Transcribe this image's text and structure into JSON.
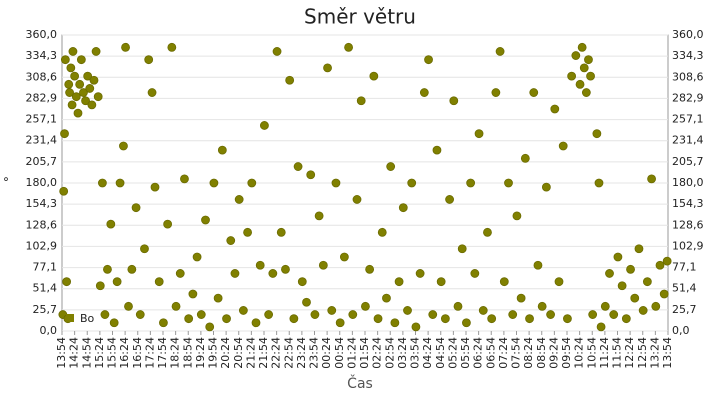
{
  "chart_data": {
    "type": "scatter",
    "title": "Směr větru",
    "x_label": "Čas",
    "y_label": "°",
    "xticks": [
      "13:54",
      "14:24",
      "14:54",
      "15:24",
      "15:54",
      "16:24",
      "16:54",
      "17:24",
      "17:54",
      "18:24",
      "18:54",
      "19:24",
      "19:54",
      "20:24",
      "20:54",
      "21:24",
      "21:54",
      "22:24",
      "22:54",
      "23:24",
      "23:54",
      "00:24",
      "00:54",
      "01:24",
      "01:54",
      "02:24",
      "02:54",
      "03:24",
      "03:54",
      "04:24",
      "04:54",
      "05:24",
      "05:54",
      "06:24",
      "06:54",
      "07:24",
      "07:54",
      "08:24",
      "08:54",
      "09:24",
      "09:54",
      "10:24",
      "10:54",
      "11:24",
      "11:54",
      "12:24",
      "12:54",
      "13:24",
      "13:54"
    ],
    "ylim": [
      0,
      360
    ],
    "yticks": [
      {
        "value": 0,
        "label": "0,0"
      },
      {
        "value": 25.7,
        "label": "25,7"
      },
      {
        "value": 51.4,
        "label": "51,4"
      },
      {
        "value": 77.1,
        "label": "77,1"
      },
      {
        "value": 102.9,
        "label": "102,9"
      },
      {
        "value": 128.6,
        "label": "128,6"
      },
      {
        "value": 154.3,
        "label": "154,3"
      },
      {
        "value": 180,
        "label": "180,0"
      },
      {
        "value": 205.7,
        "label": "205,7"
      },
      {
        "value": 231.4,
        "label": "231,4"
      },
      {
        "value": 257.1,
        "label": "257,1"
      },
      {
        "value": 282.9,
        "label": "282,9"
      },
      {
        "value": 308.6,
        "label": "308,6"
      },
      {
        "value": 334.3,
        "label": "334,3"
      },
      {
        "value": 360,
        "label": "360,0"
      }
    ],
    "grid": true,
    "x": [
      "13:56",
      "13:58",
      "14:00",
      "14:02",
      "14:05",
      "14:08",
      "14:10",
      "14:12",
      "14:15",
      "14:18",
      "14:20",
      "14:24",
      "14:28",
      "14:32",
      "14:36",
      "14:40",
      "14:45",
      "14:50",
      "14:55",
      "15:00",
      "15:05",
      "15:10",
      "15:15",
      "15:20",
      "15:25",
      "15:30",
      "15:36",
      "15:42",
      "15:50",
      "15:58",
      "16:05",
      "16:12",
      "16:20",
      "16:25",
      "16:32",
      "16:40",
      "16:50",
      "17:00",
      "17:10",
      "17:20",
      "17:28",
      "17:35",
      "17:45",
      "17:55",
      "18:05",
      "18:15",
      "18:25",
      "18:35",
      "18:45",
      "18:55",
      "19:05",
      "19:15",
      "19:25",
      "19:35",
      "19:45",
      "19:55",
      "20:05",
      "20:15",
      "20:25",
      "20:35",
      "20:45",
      "20:55",
      "21:05",
      "21:15",
      "21:25",
      "21:35",
      "21:45",
      "21:55",
      "22:05",
      "22:15",
      "22:25",
      "22:35",
      "22:45",
      "22:55",
      "23:05",
      "23:15",
      "23:25",
      "23:35",
      "23:45",
      "23:55",
      "00:05",
      "00:15",
      "00:25",
      "00:35",
      "00:45",
      "00:55",
      "01:05",
      "01:15",
      "01:25",
      "01:35",
      "01:45",
      "01:55",
      "02:05",
      "02:15",
      "02:25",
      "02:35",
      "02:45",
      "02:55",
      "03:05",
      "03:15",
      "03:25",
      "03:35",
      "03:45",
      "03:55",
      "04:05",
      "04:15",
      "04:25",
      "04:35",
      "04:45",
      "04:55",
      "05:05",
      "05:15",
      "05:25",
      "05:35",
      "05:45",
      "05:55",
      "06:05",
      "06:15",
      "06:25",
      "06:35",
      "06:45",
      "06:55",
      "07:05",
      "07:15",
      "07:25",
      "07:35",
      "07:45",
      "07:55",
      "08:05",
      "08:15",
      "08:25",
      "08:35",
      "08:45",
      "08:55",
      "09:05",
      "09:15",
      "09:25",
      "09:35",
      "09:45",
      "09:55",
      "10:05",
      "10:15",
      "10:25",
      "10:30",
      "10:35",
      "10:40",
      "10:45",
      "10:50",
      "10:55",
      "11:05",
      "11:10",
      "11:15",
      "11:25",
      "11:35",
      "11:45",
      "11:55",
      "12:05",
      "12:15",
      "12:25",
      "12:35",
      "12:45",
      "12:55",
      "13:05",
      "13:15",
      "13:25",
      "13:35",
      "13:45",
      "13:52"
    ],
    "series": [
      {
        "name": "Bo",
        "color": "#808000",
        "values": [
          20,
          170,
          240,
          330,
          60,
          15,
          300,
          290,
          320,
          275,
          340,
          310,
          285,
          265,
          300,
          330,
          290,
          280,
          310,
          295,
          275,
          305,
          340,
          285,
          55,
          180,
          20,
          75,
          130,
          10,
          60,
          180,
          225,
          345,
          30,
          75,
          150,
          20,
          100,
          330,
          290,
          175,
          60,
          10,
          130,
          345,
          30,
          70,
          185,
          15,
          45,
          90,
          20,
          135,
          5,
          180,
          40,
          220,
          15,
          110,
          70,
          160,
          25,
          120,
          180,
          10,
          80,
          250,
          20,
          70,
          340,
          120,
          75,
          305,
          15,
          200,
          60,
          35,
          190,
          20,
          140,
          80,
          320,
          25,
          180,
          10,
          90,
          345,
          20,
          160,
          280,
          30,
          75,
          310,
          15,
          120,
          40,
          200,
          10,
          60,
          150,
          25,
          180,
          5,
          70,
          290,
          330,
          20,
          220,
          60,
          15,
          160,
          280,
          30,
          100,
          10,
          180,
          70,
          240,
          25,
          120,
          15,
          290,
          340,
          60,
          180,
          20,
          140,
          40,
          210,
          15,
          290,
          80,
          30,
          175,
          20,
          270,
          60,
          225,
          15,
          310,
          335,
          300,
          345,
          320,
          290,
          330,
          310,
          20,
          240,
          180,
          5,
          30,
          70,
          20,
          90,
          55,
          15,
          75,
          40,
          100,
          25,
          60,
          185,
          30,
          80,
          45,
          85
        ]
      }
    ]
  }
}
